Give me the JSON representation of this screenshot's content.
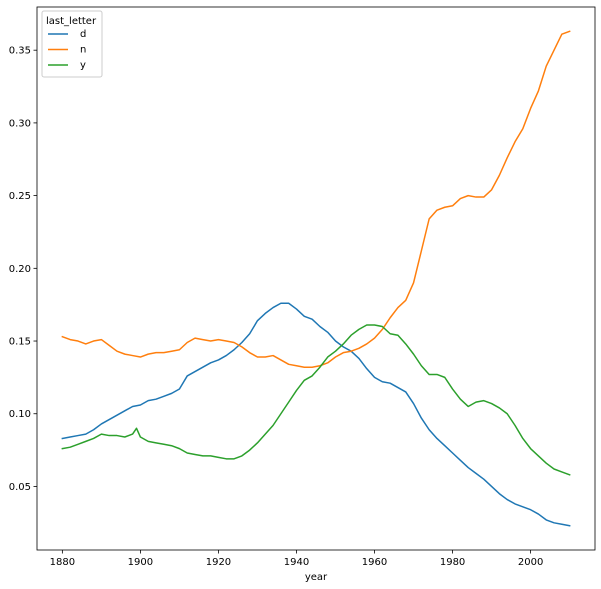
{
  "chart_data": {
    "type": "line",
    "xlabel": "year",
    "ylabel": "",
    "xlim": [
      1873.5,
      2016.5
    ],
    "ylim": [
      0.0063,
      0.3797
    ],
    "x_ticks": [
      1880,
      1900,
      1920,
      1940,
      1960,
      1980,
      2000
    ],
    "y_ticks": [
      0.05,
      0.1,
      0.15,
      0.2,
      0.25,
      0.3,
      0.35
    ],
    "y_tick_labels": [
      "0.05",
      "0.10",
      "0.15",
      "0.20",
      "0.25",
      "0.30",
      "0.35"
    ],
    "legend": {
      "title": "last_letter",
      "placement": "top-left"
    },
    "grid": false,
    "series": [
      {
        "name": "d",
        "color": "#1f77b4",
        "points": [
          [
            1880,
            0.083
          ],
          [
            1882,
            0.084
          ],
          [
            1884,
            0.085
          ],
          [
            1886,
            0.086
          ],
          [
            1888,
            0.089
          ],
          [
            1890,
            0.093
          ],
          [
            1892,
            0.096
          ],
          [
            1894,
            0.099
          ],
          [
            1896,
            0.102
          ],
          [
            1898,
            0.105
          ],
          [
            1900,
            0.106
          ],
          [
            1902,
            0.109
          ],
          [
            1904,
            0.11
          ],
          [
            1906,
            0.112
          ],
          [
            1908,
            0.114
          ],
          [
            1910,
            0.117
          ],
          [
            1912,
            0.126
          ],
          [
            1914,
            0.129
          ],
          [
            1916,
            0.132
          ],
          [
            1918,
            0.135
          ],
          [
            1920,
            0.137
          ],
          [
            1922,
            0.14
          ],
          [
            1924,
            0.144
          ],
          [
            1926,
            0.149
          ],
          [
            1928,
            0.155
          ],
          [
            1930,
            0.164
          ],
          [
            1932,
            0.169
          ],
          [
            1934,
            0.173
          ],
          [
            1936,
            0.176
          ],
          [
            1938,
            0.176
          ],
          [
            1940,
            0.172
          ],
          [
            1942,
            0.167
          ],
          [
            1944,
            0.165
          ],
          [
            1946,
            0.16
          ],
          [
            1948,
            0.156
          ],
          [
            1950,
            0.15
          ],
          [
            1952,
            0.146
          ],
          [
            1954,
            0.143
          ],
          [
            1956,
            0.138
          ],
          [
            1958,
            0.131
          ],
          [
            1960,
            0.125
          ],
          [
            1962,
            0.122
          ],
          [
            1964,
            0.121
          ],
          [
            1966,
            0.118
          ],
          [
            1968,
            0.115
          ],
          [
            1970,
            0.107
          ],
          [
            1972,
            0.097
          ],
          [
            1974,
            0.089
          ],
          [
            1976,
            0.083
          ],
          [
            1978,
            0.078
          ],
          [
            1980,
            0.073
          ],
          [
            1982,
            0.068
          ],
          [
            1984,
            0.063
          ],
          [
            1986,
            0.059
          ],
          [
            1988,
            0.055
          ],
          [
            1990,
            0.05
          ],
          [
            1992,
            0.045
          ],
          [
            1994,
            0.041
          ],
          [
            1996,
            0.038
          ],
          [
            1998,
            0.036
          ],
          [
            2000,
            0.034
          ],
          [
            2002,
            0.031
          ],
          [
            2004,
            0.027
          ],
          [
            2006,
            0.025
          ],
          [
            2008,
            0.024
          ],
          [
            2010,
            0.023
          ]
        ]
      },
      {
        "name": "n",
        "color": "#ff7f0e",
        "points": [
          [
            1880,
            0.153
          ],
          [
            1882,
            0.151
          ],
          [
            1884,
            0.15
          ],
          [
            1886,
            0.148
          ],
          [
            1888,
            0.15
          ],
          [
            1890,
            0.151
          ],
          [
            1892,
            0.147
          ],
          [
            1894,
            0.143
          ],
          [
            1896,
            0.141
          ],
          [
            1898,
            0.14
          ],
          [
            1900,
            0.139
          ],
          [
            1902,
            0.141
          ],
          [
            1904,
            0.142
          ],
          [
            1906,
            0.142
          ],
          [
            1908,
            0.143
          ],
          [
            1910,
            0.144
          ],
          [
            1912,
            0.149
          ],
          [
            1914,
            0.152
          ],
          [
            1916,
            0.151
          ],
          [
            1918,
            0.15
          ],
          [
            1920,
            0.151
          ],
          [
            1922,
            0.15
          ],
          [
            1924,
            0.149
          ],
          [
            1926,
            0.146
          ],
          [
            1928,
            0.142
          ],
          [
            1930,
            0.139
          ],
          [
            1932,
            0.139
          ],
          [
            1934,
            0.14
          ],
          [
            1936,
            0.137
          ],
          [
            1938,
            0.134
          ],
          [
            1940,
            0.133
          ],
          [
            1942,
            0.132
          ],
          [
            1944,
            0.132
          ],
          [
            1946,
            0.133
          ],
          [
            1948,
            0.135
          ],
          [
            1950,
            0.139
          ],
          [
            1952,
            0.142
          ],
          [
            1954,
            0.143
          ],
          [
            1956,
            0.145
          ],
          [
            1958,
            0.148
          ],
          [
            1960,
            0.152
          ],
          [
            1962,
            0.158
          ],
          [
            1964,
            0.166
          ],
          [
            1966,
            0.173
          ],
          [
            1968,
            0.178
          ],
          [
            1970,
            0.19
          ],
          [
            1972,
            0.212
          ],
          [
            1974,
            0.234
          ],
          [
            1976,
            0.24
          ],
          [
            1978,
            0.242
          ],
          [
            1980,
            0.243
          ],
          [
            1982,
            0.248
          ],
          [
            1984,
            0.25
          ],
          [
            1986,
            0.249
          ],
          [
            1988,
            0.249
          ],
          [
            1990,
            0.254
          ],
          [
            1992,
            0.264
          ],
          [
            1994,
            0.276
          ],
          [
            1996,
            0.287
          ],
          [
            1998,
            0.296
          ],
          [
            2000,
            0.31
          ],
          [
            2002,
            0.322
          ],
          [
            2004,
            0.339
          ],
          [
            2006,
            0.35
          ],
          [
            2008,
            0.361
          ],
          [
            2010,
            0.363
          ]
        ]
      },
      {
        "name": "y",
        "color": "#2ca02c",
        "points": [
          [
            1880,
            0.076
          ],
          [
            1882,
            0.077
          ],
          [
            1884,
            0.079
          ],
          [
            1886,
            0.081
          ],
          [
            1888,
            0.083
          ],
          [
            1890,
            0.086
          ],
          [
            1892,
            0.085
          ],
          [
            1894,
            0.085
          ],
          [
            1896,
            0.084
          ],
          [
            1898,
            0.086
          ],
          [
            1899,
            0.09
          ],
          [
            1900,
            0.084
          ],
          [
            1902,
            0.081
          ],
          [
            1904,
            0.08
          ],
          [
            1906,
            0.079
          ],
          [
            1908,
            0.078
          ],
          [
            1910,
            0.076
          ],
          [
            1912,
            0.073
          ],
          [
            1914,
            0.072
          ],
          [
            1916,
            0.071
          ],
          [
            1918,
            0.071
          ],
          [
            1920,
            0.07
          ],
          [
            1922,
            0.069
          ],
          [
            1924,
            0.069
          ],
          [
            1926,
            0.071
          ],
          [
            1928,
            0.075
          ],
          [
            1930,
            0.08
          ],
          [
            1932,
            0.086
          ],
          [
            1934,
            0.092
          ],
          [
            1936,
            0.1
          ],
          [
            1938,
            0.108
          ],
          [
            1940,
            0.116
          ],
          [
            1942,
            0.123
          ],
          [
            1944,
            0.126
          ],
          [
            1946,
            0.132
          ],
          [
            1948,
            0.139
          ],
          [
            1950,
            0.143
          ],
          [
            1952,
            0.148
          ],
          [
            1954,
            0.154
          ],
          [
            1956,
            0.158
          ],
          [
            1958,
            0.161
          ],
          [
            1960,
            0.161
          ],
          [
            1962,
            0.16
          ],
          [
            1964,
            0.155
          ],
          [
            1966,
            0.154
          ],
          [
            1968,
            0.148
          ],
          [
            1970,
            0.141
          ],
          [
            1972,
            0.133
          ],
          [
            1974,
            0.127
          ],
          [
            1976,
            0.127
          ],
          [
            1978,
            0.125
          ],
          [
            1980,
            0.117
          ],
          [
            1982,
            0.11
          ],
          [
            1984,
            0.105
          ],
          [
            1986,
            0.108
          ],
          [
            1988,
            0.109
          ],
          [
            1990,
            0.107
          ],
          [
            1992,
            0.104
          ],
          [
            1994,
            0.1
          ],
          [
            1996,
            0.092
          ],
          [
            1998,
            0.083
          ],
          [
            2000,
            0.076
          ],
          [
            2002,
            0.071
          ],
          [
            2004,
            0.066
          ],
          [
            2006,
            0.062
          ],
          [
            2008,
            0.06
          ],
          [
            2010,
            0.058
          ]
        ]
      }
    ]
  }
}
